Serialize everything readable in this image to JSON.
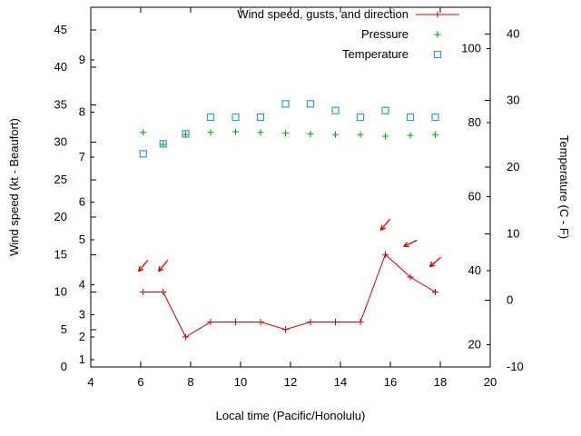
{
  "page": {
    "background": "#ffffff"
  },
  "chart_data": {
    "type": "line",
    "title": "",
    "xlabel": "Local time (Pacific/Honolulu)",
    "ylabel": "Wind speed (kt - Beaufort)",
    "y2label": "Temperature (C - F)",
    "x_axis": {
      "min": 4,
      "max": 20,
      "ticks": [
        4,
        6,
        8,
        10,
        12,
        14,
        16,
        18,
        20
      ]
    },
    "y_left_axis": {
      "min": 0,
      "max": 48,
      "unit": "kt",
      "ticks": [
        0,
        5,
        10,
        15,
        20,
        25,
        30,
        35,
        40,
        45
      ],
      "beaufort_ticks": [
        {
          "label": "1",
          "kt": 1
        },
        {
          "label": "2",
          "kt": 4
        },
        {
          "label": "3",
          "kt": 7
        },
        {
          "label": "4",
          "kt": 11
        },
        {
          "label": "5",
          "kt": 17
        },
        {
          "label": "6",
          "kt": 22
        },
        {
          "label": "7",
          "kt": 28
        },
        {
          "label": "8",
          "kt": 34
        },
        {
          "label": "9",
          "kt": 41
        }
      ]
    },
    "y_right_axis": {
      "min": -10,
      "max": 44,
      "unit": "C",
      "ticks": [
        -10,
        0,
        10,
        20,
        30,
        40
      ],
      "fahrenheit_ticks": [
        20,
        40,
        60,
        80,
        100
      ]
    },
    "legend": {
      "position": "inside-top-right",
      "entries": [
        {
          "label": "Wind speed, gusts, and direction",
          "marker": "line-plus",
          "color": "#cc0000"
        },
        {
          "label": "Pressure",
          "marker": "plus",
          "color": "#00a000"
        },
        {
          "label": "Temperature",
          "marker": "open-square",
          "color": "#3399dd"
        }
      ]
    },
    "x": [
      6.1,
      6.9,
      7.8,
      8.8,
      9.8,
      10.8,
      11.8,
      12.8,
      13.8,
      14.8,
      15.8,
      16.8,
      17.8
    ],
    "series": [
      {
        "name": "Wind speed",
        "marker": "line-plus",
        "color": "#cc0000",
        "axis": "left",
        "values": [
          10,
          10,
          4,
          6,
          6,
          6,
          5,
          6,
          6,
          6,
          15,
          12,
          10
        ]
      },
      {
        "name": "Pressure",
        "marker": "plus",
        "color": "#00a000",
        "axis": "left",
        "values": [
          31.3,
          29.7,
          31.0,
          31.3,
          31.4,
          31.3,
          31.2,
          31.1,
          31.0,
          31.0,
          30.8,
          30.9,
          31.0
        ]
      },
      {
        "name": "Temperature",
        "marker": "open-square",
        "color": "#3399dd",
        "axis": "right",
        "values": [
          22,
          23.5,
          25,
          27.5,
          27.5,
          27.5,
          29.5,
          29.5,
          28.5,
          27.5,
          28.5,
          27.5,
          27.5
        ]
      }
    ],
    "wind_direction_arrows": [
      {
        "x": 6.1,
        "kt": 13.5,
        "angle_deg": 230
      },
      {
        "x": 6.9,
        "kt": 13.5,
        "angle_deg": 230
      },
      {
        "x": 15.8,
        "kt": 19,
        "angle_deg": 230
      },
      {
        "x": 16.8,
        "kt": 16.5,
        "angle_deg": 205
      },
      {
        "x": 17.8,
        "kt": 14,
        "angle_deg": 220
      }
    ]
  }
}
